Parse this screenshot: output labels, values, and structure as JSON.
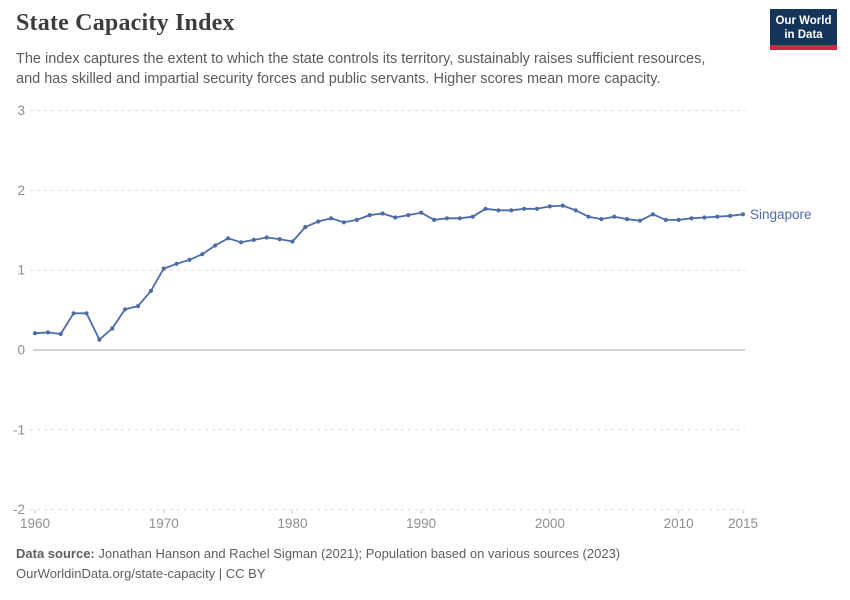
{
  "header": {
    "title": "State Capacity Index",
    "subtitle_line1": "The index captures the extent to which the state controls its territory, sustainably raises sufficient resources,",
    "subtitle_line2": "and has skilled and impartial security forces and public servants. Higher scores mean more capacity.",
    "logo": {
      "line1": "Our World",
      "line2": "in Data"
    }
  },
  "colors": {
    "line": "#4c6ca8",
    "grid": "#dcdcdc",
    "zero_line": "#a8a8a8",
    "axis_text": "#8f8f8f",
    "title_text": "#3d3d3d",
    "subtitle_text": "#5a5a5a",
    "footer_text": "#5e5e5e",
    "logo_bg": "#15345a",
    "logo_bar": "#cf283e"
  },
  "chart_data": {
    "type": "line",
    "title": "State Capacity Index",
    "xlabel": "",
    "ylabel": "",
    "grid": true,
    "ylim": [
      -2,
      3
    ],
    "y_ticks": [
      3,
      2,
      1,
      0,
      -1,
      -2
    ],
    "x_ticks": [
      1960,
      1970,
      1980,
      1990,
      2000,
      2010,
      2015
    ],
    "legend_position": "end-of-line",
    "series": [
      {
        "name": "Singapore",
        "x": [
          1960,
          1961,
          1962,
          1963,
          1964,
          1965,
          1966,
          1967,
          1968,
          1969,
          1970,
          1971,
          1972,
          1973,
          1974,
          1975,
          1976,
          1977,
          1978,
          1979,
          1980,
          1981,
          1982,
          1983,
          1984,
          1985,
          1986,
          1987,
          1988,
          1989,
          1990,
          1991,
          1992,
          1993,
          1994,
          1995,
          1996,
          1997,
          1998,
          1999,
          2000,
          2001,
          2002,
          2003,
          2004,
          2005,
          2006,
          2007,
          2008,
          2009,
          2010,
          2011,
          2012,
          2013,
          2014,
          2015
        ],
        "values": [
          0.21,
          0.22,
          0.2,
          0.46,
          0.46,
          0.13,
          0.27,
          0.51,
          0.55,
          0.74,
          1.02,
          1.08,
          1.13,
          1.2,
          1.31,
          1.4,
          1.35,
          1.38,
          1.41,
          1.39,
          1.36,
          1.54,
          1.61,
          1.65,
          1.6,
          1.63,
          1.69,
          1.71,
          1.66,
          1.69,
          1.72,
          1.63,
          1.65,
          1.65,
          1.67,
          1.77,
          1.75,
          1.75,
          1.77,
          1.77,
          1.8,
          1.81,
          1.75,
          1.67,
          1.64,
          1.67,
          1.64,
          1.62,
          1.7,
          1.63,
          1.63,
          1.65,
          1.66,
          1.67,
          1.68,
          1.7
        ]
      }
    ]
  },
  "entity_label": "Singapore",
  "footer": {
    "datasource_label": "Data source:",
    "datasource_text": " Jonathan Hanson and Rachel Sigman (2021); Population based on various sources (2023)",
    "url": "OurWorldinData.org/state-capacity",
    "separator": " | ",
    "license": "CC BY"
  }
}
